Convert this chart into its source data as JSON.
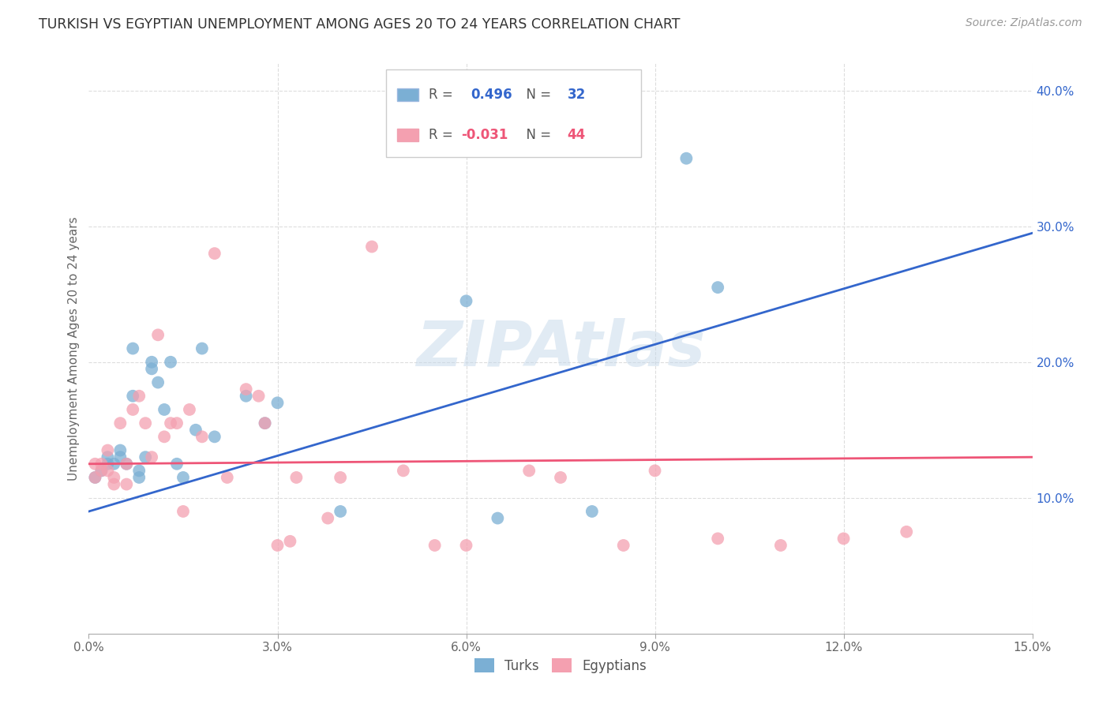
{
  "title": "TURKISH VS EGYPTIAN UNEMPLOYMENT AMONG AGES 20 TO 24 YEARS CORRELATION CHART",
  "source": "Source: ZipAtlas.com",
  "ylabel": "Unemployment Among Ages 20 to 24 years",
  "xlim": [
    0.0,
    0.15
  ],
  "ylim": [
    0.0,
    0.42
  ],
  "xticks": [
    0.0,
    0.03,
    0.06,
    0.09,
    0.12,
    0.15
  ],
  "yticks_right": [
    0.1,
    0.2,
    0.3,
    0.4
  ],
  "turks_R": "0.496",
  "turks_N": "32",
  "egyptians_R": "-0.031",
  "egyptians_N": "44",
  "turks_color": "#7BAFD4",
  "egyptians_color": "#F4A0B0",
  "turks_line_color": "#3366CC",
  "egyptians_line_color": "#EE5577",
  "watermark": "ZIPAtlas",
  "watermark_color": "#C5D8EA",
  "background_color": "#FFFFFF",
  "grid_color": "#DDDDDD",
  "turks_x": [
    0.001,
    0.002,
    0.003,
    0.003,
    0.004,
    0.005,
    0.005,
    0.006,
    0.007,
    0.007,
    0.008,
    0.008,
    0.009,
    0.01,
    0.01,
    0.011,
    0.012,
    0.013,
    0.014,
    0.015,
    0.017,
    0.018,
    0.02,
    0.025,
    0.028,
    0.03,
    0.04,
    0.06,
    0.065,
    0.08,
    0.095,
    0.1
  ],
  "turks_y": [
    0.115,
    0.12,
    0.125,
    0.13,
    0.125,
    0.135,
    0.13,
    0.125,
    0.175,
    0.21,
    0.115,
    0.12,
    0.13,
    0.2,
    0.195,
    0.185,
    0.165,
    0.2,
    0.125,
    0.115,
    0.15,
    0.21,
    0.145,
    0.175,
    0.155,
    0.17,
    0.09,
    0.245,
    0.085,
    0.09,
    0.35,
    0.255
  ],
  "egyptians_x": [
    0.001,
    0.001,
    0.002,
    0.002,
    0.003,
    0.003,
    0.004,
    0.004,
    0.005,
    0.006,
    0.006,
    0.007,
    0.008,
    0.009,
    0.01,
    0.011,
    0.012,
    0.013,
    0.014,
    0.015,
    0.016,
    0.018,
    0.02,
    0.022,
    0.025,
    0.027,
    0.028,
    0.03,
    0.032,
    0.033,
    0.038,
    0.04,
    0.045,
    0.05,
    0.055,
    0.06,
    0.07,
    0.075,
    0.085,
    0.09,
    0.1,
    0.11,
    0.12,
    0.13
  ],
  "egyptians_y": [
    0.115,
    0.125,
    0.12,
    0.125,
    0.12,
    0.135,
    0.11,
    0.115,
    0.155,
    0.11,
    0.125,
    0.165,
    0.175,
    0.155,
    0.13,
    0.22,
    0.145,
    0.155,
    0.155,
    0.09,
    0.165,
    0.145,
    0.28,
    0.115,
    0.18,
    0.175,
    0.155,
    0.065,
    0.068,
    0.115,
    0.085,
    0.115,
    0.285,
    0.12,
    0.065,
    0.065,
    0.12,
    0.115,
    0.065,
    0.12,
    0.07,
    0.065,
    0.07,
    0.075
  ],
  "turks_line_y0": 0.09,
  "turks_line_y1": 0.295,
  "egyptians_line_y0": 0.125,
  "egyptians_line_y1": 0.13
}
